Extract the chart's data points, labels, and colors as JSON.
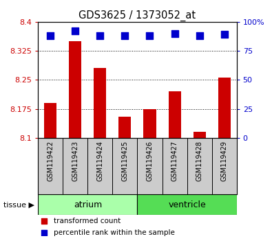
{
  "title": "GDS3625 / 1373052_at",
  "samples": [
    "GSM119422",
    "GSM119423",
    "GSM119424",
    "GSM119425",
    "GSM119426",
    "GSM119427",
    "GSM119428",
    "GSM119429"
  ],
  "transformed_counts": [
    8.19,
    8.35,
    8.28,
    8.155,
    8.175,
    8.22,
    8.115,
    8.255
  ],
  "percentile_ranks": [
    88,
    92,
    88,
    88,
    88,
    90,
    88,
    89
  ],
  "ylim_left": [
    8.1,
    8.4
  ],
  "ylim_right": [
    0,
    100
  ],
  "yticks_left": [
    8.1,
    8.175,
    8.25,
    8.325,
    8.4
  ],
  "yticks_right": [
    0,
    25,
    50,
    75,
    100
  ],
  "yticklabels_left": [
    "8.1",
    "8.175",
    "8.25",
    "8.325",
    "8.4"
  ],
  "yticklabels_right": [
    "0",
    "25",
    "50",
    "75",
    "100%"
  ],
  "bar_color": "#cc0000",
  "dot_color": "#0000cc",
  "sample_box_color": "#cccccc",
  "atrium_color": "#aaffaa",
  "ventricle_color": "#55dd55",
  "tissue_groups": {
    "atrium": [
      0,
      1,
      2,
      3
    ],
    "ventricle": [
      4,
      5,
      6,
      7
    ]
  },
  "background_color": "#ffffff",
  "bar_width": 0.5,
  "dot_size": 45,
  "legend_items": [
    {
      "label": "transformed count",
      "color": "#cc0000"
    },
    {
      "label": "percentile rank within the sample",
      "color": "#0000cc"
    }
  ]
}
